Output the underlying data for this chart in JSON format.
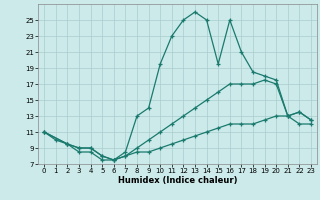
{
  "xlabel": "Humidex (Indice chaleur)",
  "bg_color": "#cceaea",
  "grid_color": "#aacccc",
  "line_color": "#1a7a6e",
  "xlim": [
    -0.5,
    23.5
  ],
  "ylim": [
    7,
    27
  ],
  "yticks": [
    7,
    9,
    11,
    13,
    15,
    17,
    19,
    21,
    23,
    25
  ],
  "xticks": [
    0,
    1,
    2,
    3,
    4,
    5,
    6,
    7,
    8,
    9,
    10,
    11,
    12,
    13,
    14,
    15,
    16,
    17,
    18,
    19,
    20,
    21,
    22,
    23
  ],
  "lines": [
    {
      "x": [
        0,
        1,
        2,
        3,
        4,
        5,
        6,
        7,
        8,
        9,
        10,
        11,
        12,
        13,
        14,
        15,
        16,
        17,
        18,
        19,
        20,
        21,
        22,
        23
      ],
      "y": [
        11,
        10,
        9.5,
        8.5,
        8.5,
        7.5,
        7.5,
        8.0,
        8.5,
        8.5,
        9.0,
        9.5,
        10.0,
        10.5,
        11.0,
        11.5,
        12.0,
        12.0,
        12.0,
        12.5,
        13.0,
        13.0,
        12.0,
        12.0
      ]
    },
    {
      "x": [
        0,
        2,
        3,
        4,
        5,
        6,
        7,
        8,
        9,
        10,
        11,
        12,
        13,
        14,
        15,
        16,
        17,
        18,
        19,
        20,
        21,
        22,
        23
      ],
      "y": [
        11,
        9.5,
        9.0,
        9.0,
        8.0,
        7.5,
        8.5,
        13.0,
        14.0,
        19.5,
        23.0,
        25.0,
        26.0,
        25.0,
        19.5,
        25.0,
        21.0,
        18.5,
        18.0,
        17.5,
        13.0,
        13.5,
        12.5
      ]
    },
    {
      "x": [
        0,
        2,
        3,
        4,
        5,
        6,
        7,
        8,
        9,
        10,
        11,
        12,
        13,
        14,
        15,
        16,
        17,
        18,
        19,
        20,
        21,
        22,
        23
      ],
      "y": [
        11,
        9.5,
        9.0,
        9.0,
        8.0,
        7.5,
        8.0,
        9.0,
        10.0,
        11.0,
        12.0,
        13.0,
        14.0,
        15.0,
        16.0,
        17.0,
        17.0,
        17.0,
        17.5,
        17.0,
        13.0,
        13.5,
        12.5
      ]
    }
  ]
}
